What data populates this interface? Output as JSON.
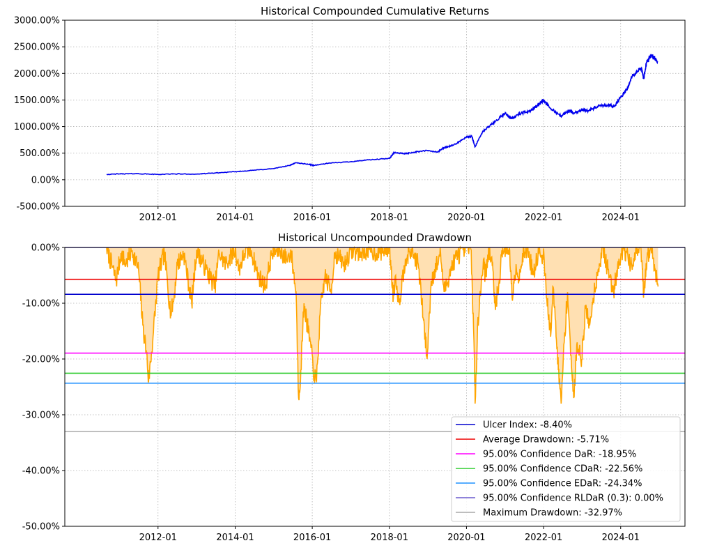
{
  "chart_data": [
    {
      "type": "line",
      "title": "Historical Compounded Cumulative Returns",
      "xlabel": "",
      "ylabel": "",
      "x_ticks": [
        "2012-01",
        "2014-01",
        "2016-01",
        "2018-01",
        "2020-01",
        "2022-01",
        "2024-01"
      ],
      "y_ticks": [
        "-500.00%",
        "0.00%",
        "500.00%",
        "1000.00%",
        "1500.00%",
        "2000.00%",
        "2500.00%",
        "3000.00%"
      ],
      "xlim": [
        "2009-08-01",
        "2025-09-01"
      ],
      "ylim": [
        -500,
        3000
      ],
      "grid": true,
      "series": [
        {
          "color": "#0000ee",
          "x": [
            "2010-09-01",
            "2011-01-01",
            "2011-06-01",
            "2012-01-01",
            "2012-06-01",
            "2013-01-01",
            "2013-06-01",
            "2014-01-01",
            "2014-06-01",
            "2015-01-01",
            "2015-06-01",
            "2015-08-01",
            "2015-12-01",
            "2016-01-15",
            "2016-06-01",
            "2017-01-01",
            "2017-06-01",
            "2018-01-01",
            "2018-02-15",
            "2018-06-01",
            "2018-09-01",
            "2018-12-20",
            "2019-04-01",
            "2019-06-01",
            "2019-09-01",
            "2020-01-01",
            "2020-02-20",
            "2020-03-23",
            "2020-06-01",
            "2020-09-01",
            "2021-01-01",
            "2021-03-01",
            "2021-06-01",
            "2021-09-01",
            "2021-11-15",
            "2022-01-01",
            "2022-03-01",
            "2022-06-15",
            "2022-09-01",
            "2022-10-15",
            "2023-01-01",
            "2023-03-01",
            "2023-06-01",
            "2023-09-01",
            "2023-11-01",
            "2024-01-01",
            "2024-03-01",
            "2024-04-20",
            "2024-07-15",
            "2024-08-05",
            "2024-09-01",
            "2024-10-15",
            "2024-12-15"
          ],
          "y": [
            100,
            110,
            115,
            100,
            110,
            105,
            125,
            150,
            175,
            210,
            270,
            320,
            290,
            270,
            310,
            340,
            370,
            400,
            510,
            490,
            520,
            550,
            520,
            600,
            650,
            800,
            820,
            620,
            900,
            1050,
            1250,
            1150,
            1250,
            1300,
            1420,
            1500,
            1350,
            1200,
            1300,
            1250,
            1320,
            1300,
            1380,
            1400,
            1380,
            1550,
            1700,
            1950,
            2100,
            1900,
            2200,
            2350,
            2230
          ]
        }
      ]
    },
    {
      "type": "area",
      "title": "Historical Uncompounded Drawdown",
      "xlabel": "",
      "ylabel": "",
      "x_ticks": [
        "2012-01",
        "2014-01",
        "2016-01",
        "2018-01",
        "2020-01",
        "2022-01",
        "2024-01"
      ],
      "y_ticks": [
        "-50.00%",
        "-40.00%",
        "-30.00%",
        "-20.00%",
        "-10.00%",
        "0.00%"
      ],
      "xlim": [
        "2009-08-01",
        "2025-09-01"
      ],
      "ylim": [
        -50,
        0
      ],
      "grid": true,
      "drawdown_series": {
        "color": "#ffa500",
        "fill_color": "#ffe0b2",
        "x": [
          "2010-09-01",
          "2010-12-01",
          "2011-01-15",
          "2011-03-01",
          "2011-05-01",
          "2011-07-01",
          "2011-08-10",
          "2011-09-15",
          "2011-10-04",
          "2011-11-15",
          "2012-01-01",
          "2012-03-01",
          "2012-05-01",
          "2012-06-01",
          "2012-07-01",
          "2012-09-01",
          "2012-11-15",
          "2013-01-01",
          "2013-04-01",
          "2013-06-24",
          "2013-08-01",
          "2013-10-01",
          "2014-01-01",
          "2014-02-05",
          "2014-04-01",
          "2014-06-01",
          "2014-08-05",
          "2014-10-15",
          "2014-12-15",
          "2015-03-01",
          "2015-05-01",
          "2015-06-15",
          "2015-08-01",
          "2015-08-25",
          "2015-09-15",
          "2015-10-15",
          "2015-11-15",
          "2015-12-20",
          "2016-01-20",
          "2016-02-11",
          "2016-03-15",
          "2016-05-01",
          "2016-06-27",
          "2016-08-01",
          "2016-11-04",
          "2017-01-01",
          "2017-04-01",
          "2017-06-01",
          "2017-09-01",
          "2018-01-01",
          "2018-02-08",
          "2018-03-01",
          "2018-04-02",
          "2018-06-01",
          "2018-08-01",
          "2018-10-01",
          "2018-11-20",
          "2018-12-24",
          "2019-02-01",
          "2019-05-01",
          "2019-06-03",
          "2019-08-05",
          "2019-09-15",
          "2019-12-01",
          "2020-01-15",
          "2020-02-15",
          "2020-03-16",
          "2020-03-23",
          "2020-04-15",
          "2020-06-10",
          "2020-06-26",
          "2020-08-01",
          "2020-09-08",
          "2020-09-23",
          "2020-10-30",
          "2020-12-01",
          "2021-02-10",
          "2021-03-08",
          "2021-04-15",
          "2021-05-12",
          "2021-06-15",
          "2021-08-01",
          "2021-09-30",
          "2021-11-19",
          "2021-12-20",
          "2022-01-03",
          "2022-01-27",
          "2022-02-20",
          "2022-03-08",
          "2022-03-29",
          "2022-05-10",
          "2022-05-20",
          "2022-06-16",
          "2022-07-15",
          "2022-08-16",
          "2022-09-30",
          "2022-10-13",
          "2022-11-15",
          "2022-12-28",
          "2023-02-01",
          "2023-03-13",
          "2023-04-15",
          "2023-06-01",
          "2023-07-19",
          "2023-08-18",
          "2023-09-15",
          "2023-10-26",
          "2023-12-15",
          "2024-02-01",
          "2024-04-19",
          "2024-05-20",
          "2024-07-10",
          "2024-07-24",
          "2024-08-05",
          "2024-08-20",
          "2024-09-06",
          "2024-10-15",
          "2024-11-15",
          "2024-12-20"
        ],
        "y": [
          0,
          -6,
          -1,
          -3,
          -0.5,
          -4,
          -14,
          -19,
          -24,
          -16,
          -5,
          -1,
          -12,
          -9,
          -3,
          -1,
          -10,
          -0.5,
          -4,
          -7,
          -1,
          -3,
          -0.5,
          -4,
          -1,
          -0.5,
          -5,
          -7,
          -1,
          -0.5,
          -2,
          -1,
          -8,
          -27,
          -22,
          -10,
          -14,
          -18,
          -23,
          -24,
          -12,
          -5,
          -8,
          -1,
          -3,
          -0.5,
          -1,
          -0.5,
          -1,
          0,
          -9,
          -5,
          -10,
          -2,
          -0.5,
          -3,
          -13,
          -20,
          -6,
          -1,
          -8,
          -4,
          -2,
          -0.5,
          0,
          -0.5,
          -20,
          -28,
          -14,
          -2,
          -5,
          -0.5,
          -4,
          -10,
          -8,
          -0.5,
          0,
          -9,
          -3,
          -6,
          -1,
          -0.5,
          -5,
          0,
          -3,
          -1,
          -9,
          -12,
          -16,
          -7,
          -18,
          -22,
          -28,
          -17,
          -8,
          -24,
          -27,
          -17,
          -20,
          -11,
          -14,
          -9,
          -4,
          0,
          -3,
          -5,
          -8,
          -2,
          0,
          -4,
          -1,
          0,
          -4,
          -9,
          -6,
          -2,
          0,
          -3,
          -7
        ]
      },
      "reference_lines": [
        {
          "label": "Ulcer Index: -8.40%",
          "value": -8.4,
          "color": "#0000cd"
        },
        {
          "label": "Average Drawdown: -5.71%",
          "value": -5.71,
          "color": "#ee0000"
        },
        {
          "label": "95.00% Confidence DaR: -18.95%",
          "value": -18.95,
          "color": "#ff00ff"
        },
        {
          "label": "95.00% Confidence CDaR: -22.56%",
          "value": -22.56,
          "color": "#32cd32"
        },
        {
          "label": "95.00% Confidence EDaR: -24.34%",
          "value": -24.34,
          "color": "#1e90ff"
        },
        {
          "label": "95.00% Confidence RLDaR (0.3): 0.00%",
          "value": 0.0,
          "color": "#6a5acd"
        },
        {
          "label": "Maximum Drawdown: -32.97%",
          "value": -32.97,
          "color": "#a9a9a9"
        }
      ],
      "legend_position": "lower right"
    }
  ]
}
